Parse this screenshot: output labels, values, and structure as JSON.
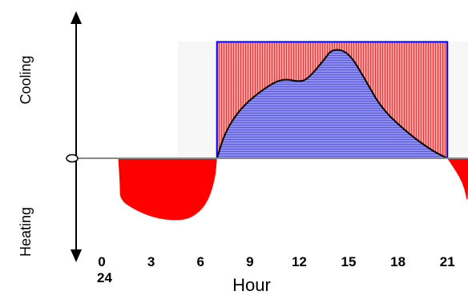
{
  "chart_data": {
    "type": "area",
    "xlabel": "Hour",
    "ylabel_positive": "Cooling",
    "ylabel_negative": "Heating",
    "x_ticks": [
      {
        "value": 0,
        "label": "0"
      },
      {
        "value": 3,
        "label": "3"
      },
      {
        "value": 6,
        "label": "6"
      },
      {
        "value": 9,
        "label": "9"
      },
      {
        "value": 12,
        "label": "12"
      },
      {
        "value": 15,
        "label": "15"
      },
      {
        "value": 18,
        "label": "18"
      },
      {
        "value": 21,
        "label": "21"
      }
    ],
    "x_tick_extra": {
      "value": 0,
      "label": "24"
    },
    "xlim": [
      -1.5,
      24
    ],
    "ylim": [
      -1.25,
      1.5
    ],
    "operating_window": {
      "start": 7,
      "end": 21,
      "level": 1.4
    },
    "series": [
      {
        "kind": "cooling",
        "color": "#7f7fe6",
        "points": [
          [
            7,
            0
          ],
          [
            7.5,
            0.32
          ],
          [
            8.5,
            0.62
          ],
          [
            10,
            0.86
          ],
          [
            11,
            0.96
          ],
          [
            12,
            0.92
          ],
          [
            12.5,
            0.95
          ],
          [
            13.5,
            1.18
          ],
          [
            14,
            1.32
          ],
          [
            15,
            1.28
          ],
          [
            16,
            0.95
          ],
          [
            17,
            0.6
          ],
          [
            18.5,
            0.32
          ],
          [
            20,
            0.1
          ],
          [
            21,
            0
          ]
        ]
      },
      {
        "kind": "heating",
        "color": "#ff0000",
        "points": [
          [
            1,
            0
          ],
          [
            1.1,
            -0.32
          ],
          [
            1.1,
            -0.5
          ],
          [
            2,
            -0.62
          ],
          [
            3.2,
            -0.72
          ],
          [
            4.5,
            -0.75
          ],
          [
            5.5,
            -0.72
          ],
          [
            6.4,
            -0.55
          ],
          [
            6.9,
            -0.25
          ],
          [
            7,
            0
          ]
        ]
      },
      {
        "kind": "heating",
        "color": "#ff0000",
        "points": [
          [
            21,
            0
          ],
          [
            22,
            -0.3
          ],
          [
            24,
            -0.6
          ],
          [
            24,
            0
          ]
        ]
      }
    ],
    "shaded_region_color": "#ff8080",
    "window_outline_color": "#0000ff"
  }
}
